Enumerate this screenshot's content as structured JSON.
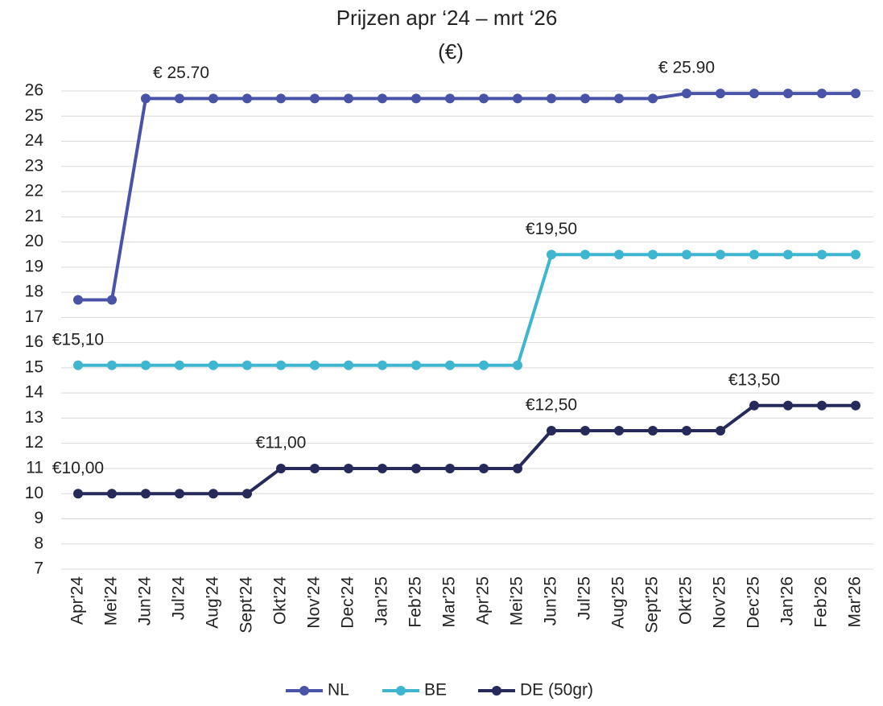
{
  "chart_data": {
    "type": "line",
    "title": "Prijzen apr ‘24 – mrt ‘26",
    "subtitle": "(€)",
    "categories": [
      "Apr'24",
      "Mei'24",
      "Jun'24",
      "Jul'24",
      "Aug'24",
      "Sept'24",
      "Okt'24",
      "Nov'24",
      "Dec'24",
      "Jan'25",
      "Feb'25",
      "Mar'25",
      "Apr'25",
      "Mei'25",
      "Jun'25",
      "Jul'25",
      "Aug'25",
      "Sept'25",
      "Okt'25",
      "Nov'25",
      "Dec'25",
      "Jan'26",
      "Feb'26",
      "Mar'26"
    ],
    "series": [
      {
        "name": "NL",
        "color": "#4953a8",
        "values": [
          17.7,
          17.7,
          25.7,
          25.7,
          25.7,
          25.7,
          25.7,
          25.7,
          25.7,
          25.7,
          25.7,
          25.7,
          25.7,
          25.7,
          25.7,
          25.7,
          25.7,
          25.7,
          25.9,
          25.9,
          25.9,
          25.9,
          25.9,
          25.9
        ],
        "value_labels": [
          null,
          null,
          "€ 25.70",
          null,
          null,
          null,
          null,
          null,
          null,
          null,
          null,
          null,
          null,
          null,
          null,
          null,
          null,
          null,
          "€ 25.90",
          null,
          null,
          null,
          null,
          null
        ]
      },
      {
        "name": "BE",
        "color": "#3fb6cf",
        "values": [
          15.1,
          15.1,
          15.1,
          15.1,
          15.1,
          15.1,
          15.1,
          15.1,
          15.1,
          15.1,
          15.1,
          15.1,
          15.1,
          15.1,
          19.5,
          19.5,
          19.5,
          19.5,
          19.5,
          19.5,
          19.5,
          19.5,
          19.5,
          19.5
        ],
        "value_labels": [
          "€15,10",
          null,
          null,
          null,
          null,
          null,
          null,
          null,
          null,
          null,
          null,
          null,
          null,
          null,
          "€19,50",
          null,
          null,
          null,
          null,
          null,
          null,
          null,
          null,
          null
        ]
      },
      {
        "name": "DE (50gr)",
        "color": "#252a5b",
        "values": [
          10,
          10,
          10,
          10,
          10,
          10,
          11,
          11,
          11,
          11,
          11,
          11,
          11,
          11,
          12.5,
          12.5,
          12.5,
          12.5,
          12.5,
          12.5,
          13.5,
          13.5,
          13.5,
          13.5
        ],
        "value_labels": [
          "€10,00",
          null,
          null,
          null,
          null,
          null,
          "€11,00",
          null,
          null,
          null,
          null,
          null,
          null,
          null,
          "€12,50",
          null,
          null,
          null,
          null,
          null,
          "€13,50",
          null,
          null,
          null
        ]
      }
    ],
    "ylim": [
      7,
      26
    ],
    "yticks": [
      7,
      8,
      9,
      10,
      11,
      12,
      13,
      14,
      15,
      16,
      17,
      18,
      19,
      20,
      21,
      22,
      23,
      24,
      25,
      26
    ],
    "grid": true,
    "legend": "bottom"
  }
}
